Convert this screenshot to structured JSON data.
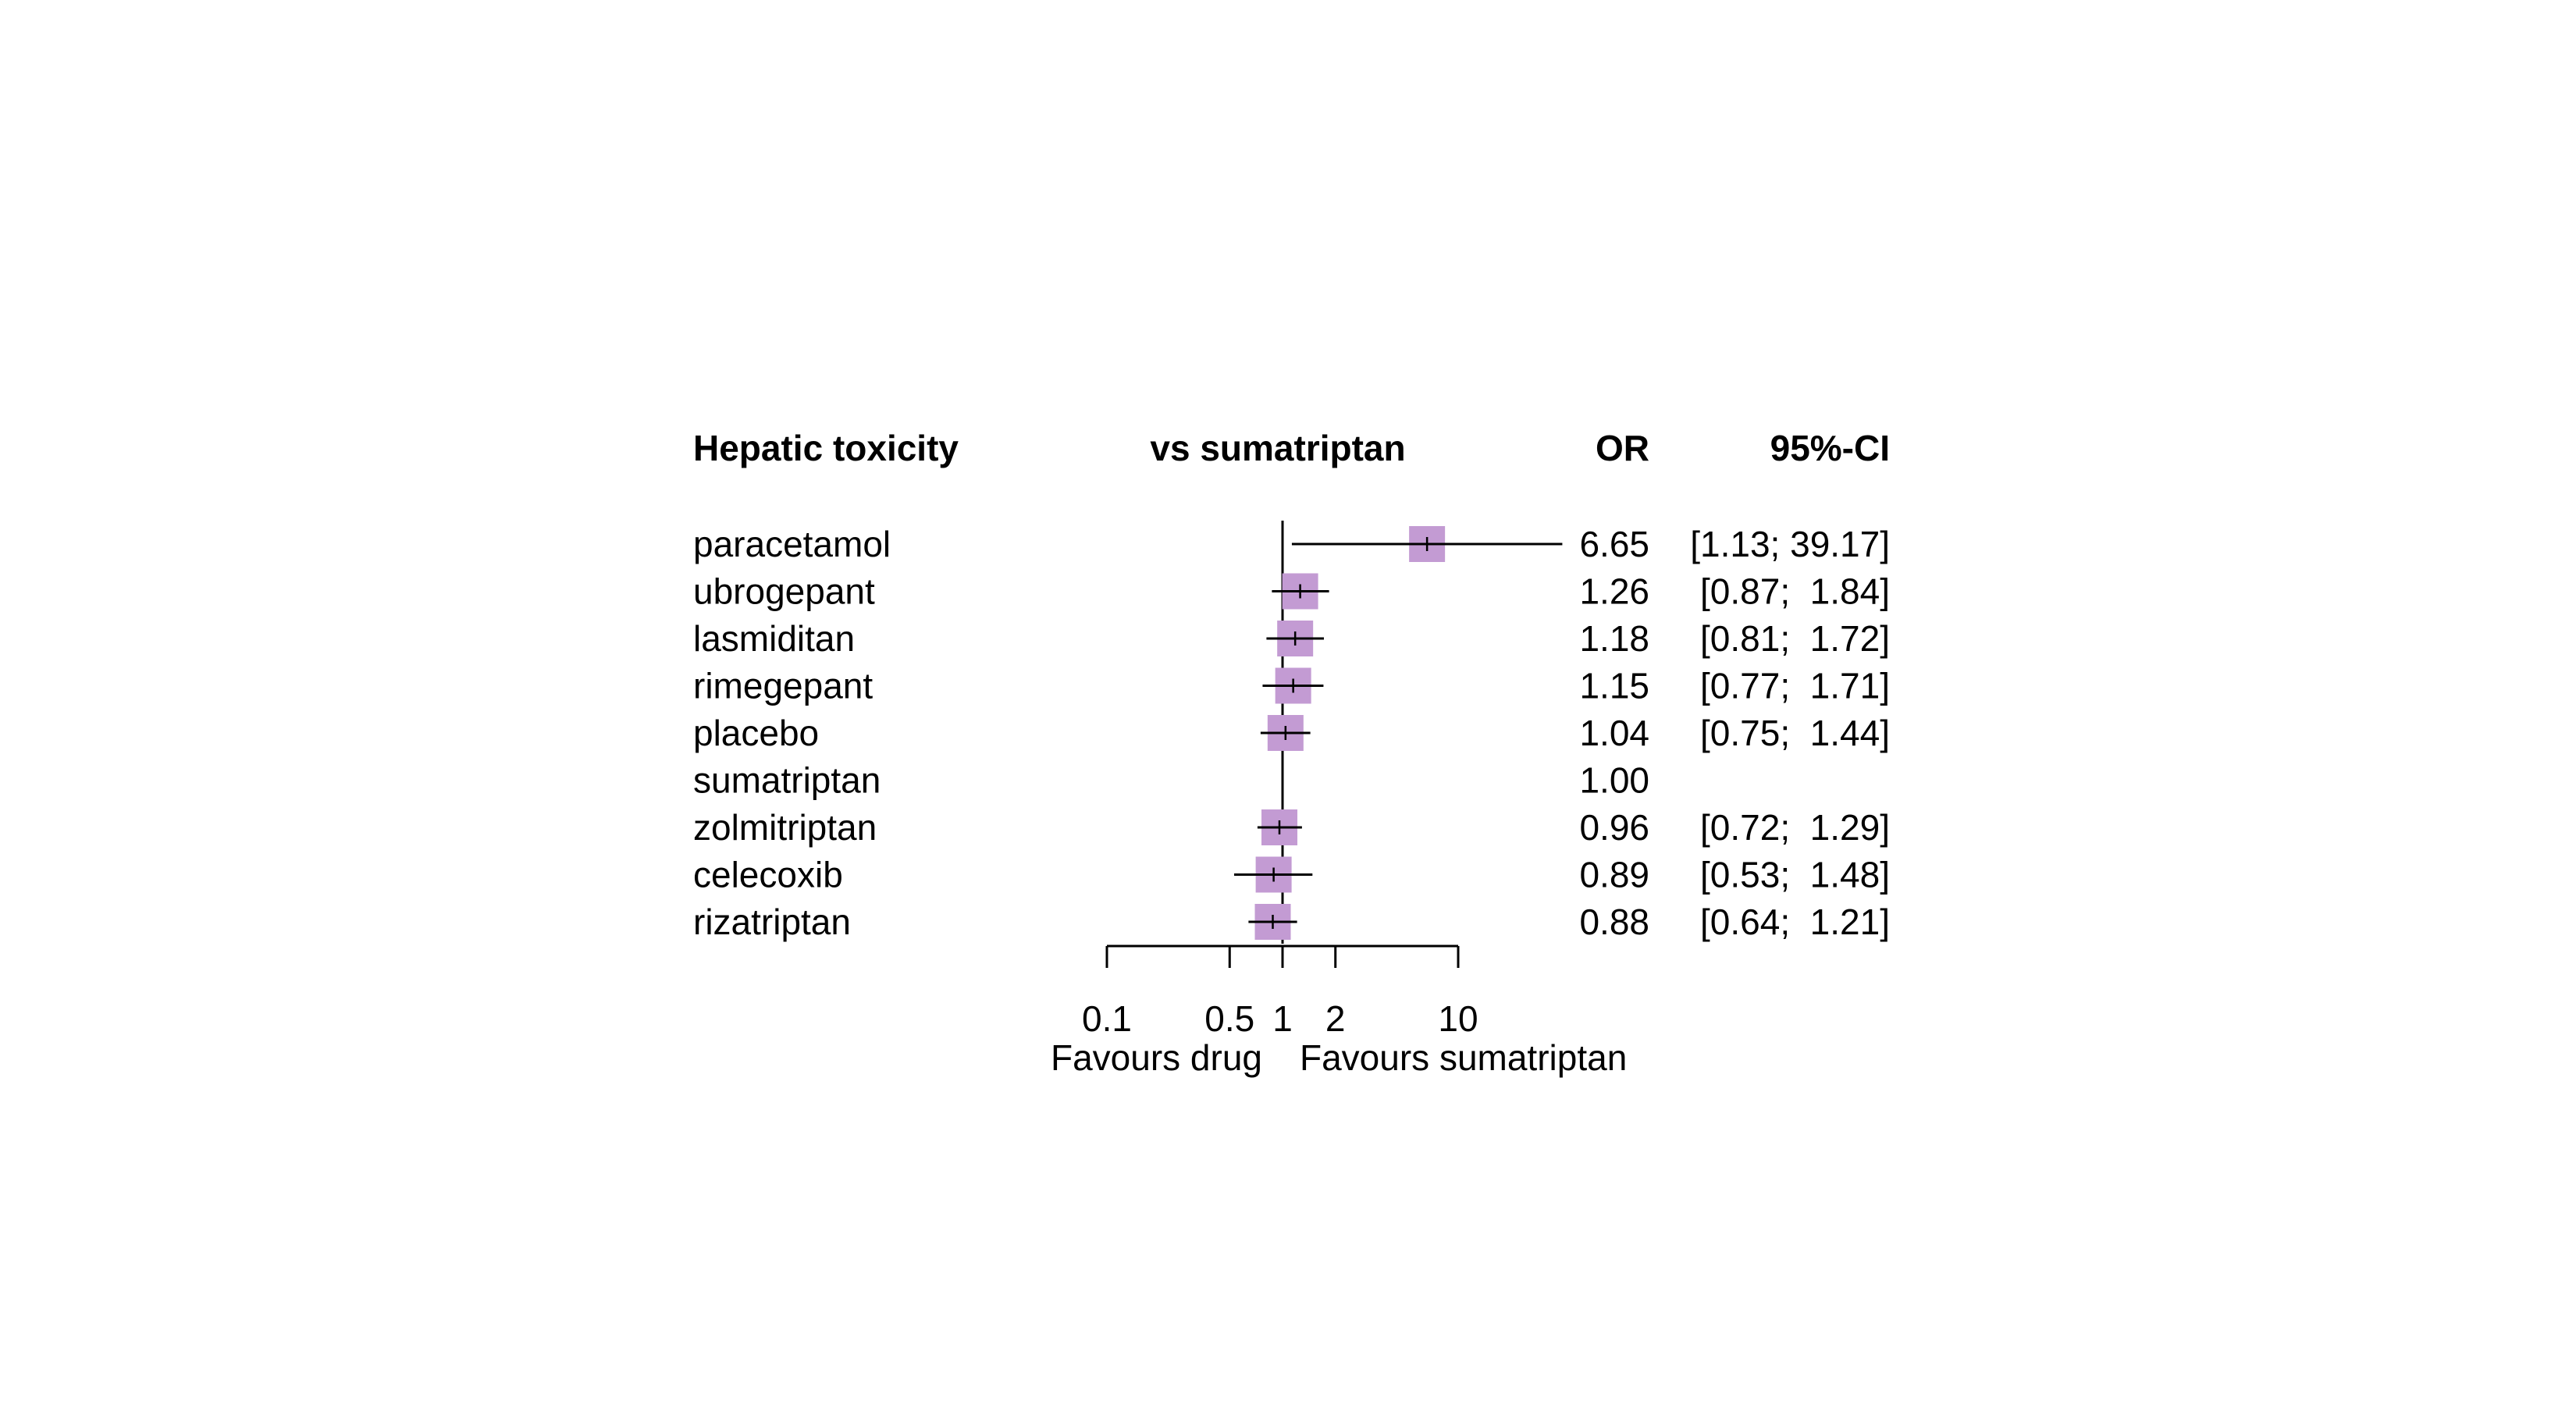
{
  "chart_data": {
    "type": "forest",
    "title": "",
    "headers": {
      "outcome": "Hepatic toxicity",
      "comparison": "vs sumatriptan",
      "estimate": "OR",
      "interval": "95%-CI"
    },
    "scale": "log",
    "reference_value": 1,
    "xlim": [
      0.1,
      10
    ],
    "x_ticks": [
      0.1,
      0.5,
      1,
      2,
      10
    ],
    "x_tick_labels": [
      "0.1",
      "0.5",
      "1",
      "2",
      "10"
    ],
    "direction_labels": {
      "left": "Favours drug",
      "right": "Favours sumatriptan"
    },
    "marker_color": "#C39BD3",
    "rows": [
      {
        "treatment": "paracetamol",
        "or": 6.65,
        "lower": 1.13,
        "upper": 39.17,
        "or_text": "6.65",
        "ci_text": "[1.13; 39.17]"
      },
      {
        "treatment": "ubrogepant",
        "or": 1.26,
        "lower": 0.87,
        "upper": 1.84,
        "or_text": "1.26",
        "ci_text": "[0.87;  1.84]"
      },
      {
        "treatment": "lasmiditan",
        "or": 1.18,
        "lower": 0.81,
        "upper": 1.72,
        "or_text": "1.18",
        "ci_text": "[0.81;  1.72]"
      },
      {
        "treatment": "rimegepant",
        "or": 1.15,
        "lower": 0.77,
        "upper": 1.71,
        "or_text": "1.15",
        "ci_text": "[0.77;  1.71]"
      },
      {
        "treatment": "placebo",
        "or": 1.04,
        "lower": 0.75,
        "upper": 1.44,
        "or_text": "1.04",
        "ci_text": "[0.75;  1.44]"
      },
      {
        "treatment": "sumatriptan",
        "or": 1.0,
        "lower": null,
        "upper": null,
        "or_text": "1.00",
        "ci_text": ""
      },
      {
        "treatment": "zolmitriptan",
        "or": 0.96,
        "lower": 0.72,
        "upper": 1.29,
        "or_text": "0.96",
        "ci_text": "[0.72;  1.29]"
      },
      {
        "treatment": "celecoxib",
        "or": 0.89,
        "lower": 0.53,
        "upper": 1.48,
        "or_text": "0.89",
        "ci_text": "[0.53;  1.48]"
      },
      {
        "treatment": "rizatriptan",
        "or": 0.88,
        "lower": 0.64,
        "upper": 1.21,
        "or_text": "0.88",
        "ci_text": "[0.64;  1.21]"
      }
    ]
  }
}
